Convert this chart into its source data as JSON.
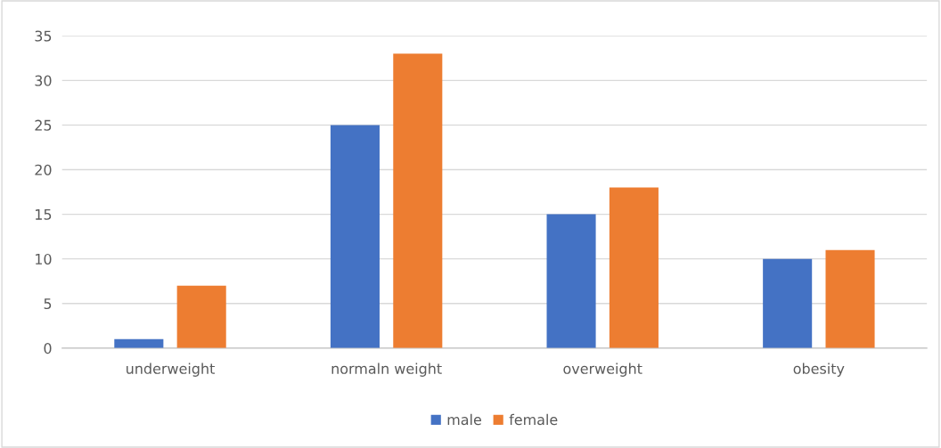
{
  "chart_data": {
    "type": "bar",
    "categories": [
      "underweight",
      "normaln weight",
      "overweight",
      "obesity"
    ],
    "series": [
      {
        "name": "male",
        "color": "#4472c4",
        "values": [
          1,
          25,
          15,
          10
        ]
      },
      {
        "name": "female",
        "color": "#ed7d31",
        "values": [
          7,
          33,
          18,
          11
        ]
      }
    ],
    "ylim": [
      0,
      35
    ],
    "yticks": [
      0,
      5,
      10,
      15,
      20,
      25,
      30,
      35
    ],
    "grid": "y",
    "legend": "bottom"
  }
}
